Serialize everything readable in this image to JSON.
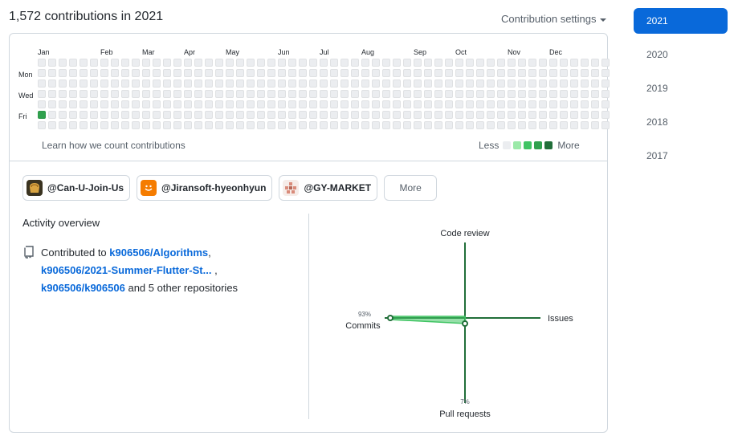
{
  "header": {
    "title": "1,572 contributions in 2021",
    "settings_label": "Contribution settings"
  },
  "years": [
    "2021",
    "2020",
    "2019",
    "2018",
    "2017"
  ],
  "active_year": "2021",
  "calendar": {
    "months": [
      "Jan",
      "Feb",
      "Mar",
      "Apr",
      "May",
      "Jun",
      "Jul",
      "Aug",
      "Sep",
      "Oct",
      "Nov",
      "Dec"
    ],
    "days": [
      "Mon",
      "Wed",
      "Fri"
    ],
    "levels": [
      "0000000000000000000000000000000000000000000000000000000",
      "0000000000000000000000000000000000000000000000000000000",
      "0000000000000000000000000000000000000000000000000000000",
      "0000000000000000000000000000000000000000000000000000000",
      "0000000000000000000000000000000000000000000000000000000",
      "3000000000000000000000000000000000000000000000000000000",
      "0000000000000000000000000000000000000000000000000000000"
    ],
    "colors": [
      "#ebedf0",
      "#9be9a8",
      "#40c463",
      "#30a14e",
      "#216e39"
    ],
    "learn_label": "Learn how we count contributions",
    "legend_less": "Less",
    "legend_more": "More"
  },
  "orgs": [
    {
      "label": "@Can-U-Join-Us",
      "icon": "bread-icon",
      "color": "#c89b3c"
    },
    {
      "label": "@Jiransoft-hyeonhyun",
      "icon": "smile-icon",
      "color": "#f57c00"
    },
    {
      "label": "@GY-MARKET",
      "icon": "pattern-icon",
      "color": "#e0b0a0"
    }
  ],
  "orgs_more_label": "More",
  "activity": {
    "title": "Activity overview",
    "prefix": "Contributed to",
    "repo1": "k906506/Algorithms",
    "sep1": ",",
    "repo2": "k906506/2021-Summer-Flutter-St...",
    "sep2": ",",
    "repo3": "k906506/k906506",
    "suffix": "and 5 other repositories"
  },
  "radar": {
    "code_review": "Code review",
    "issues": "Issues",
    "commits": "Commits",
    "commits_pct": "93%",
    "commits_value": 93,
    "pull_requests": "Pull requests",
    "pull_requests_pct": "7%",
    "pull_requests_value": 7,
    "color": "#216e39"
  }
}
